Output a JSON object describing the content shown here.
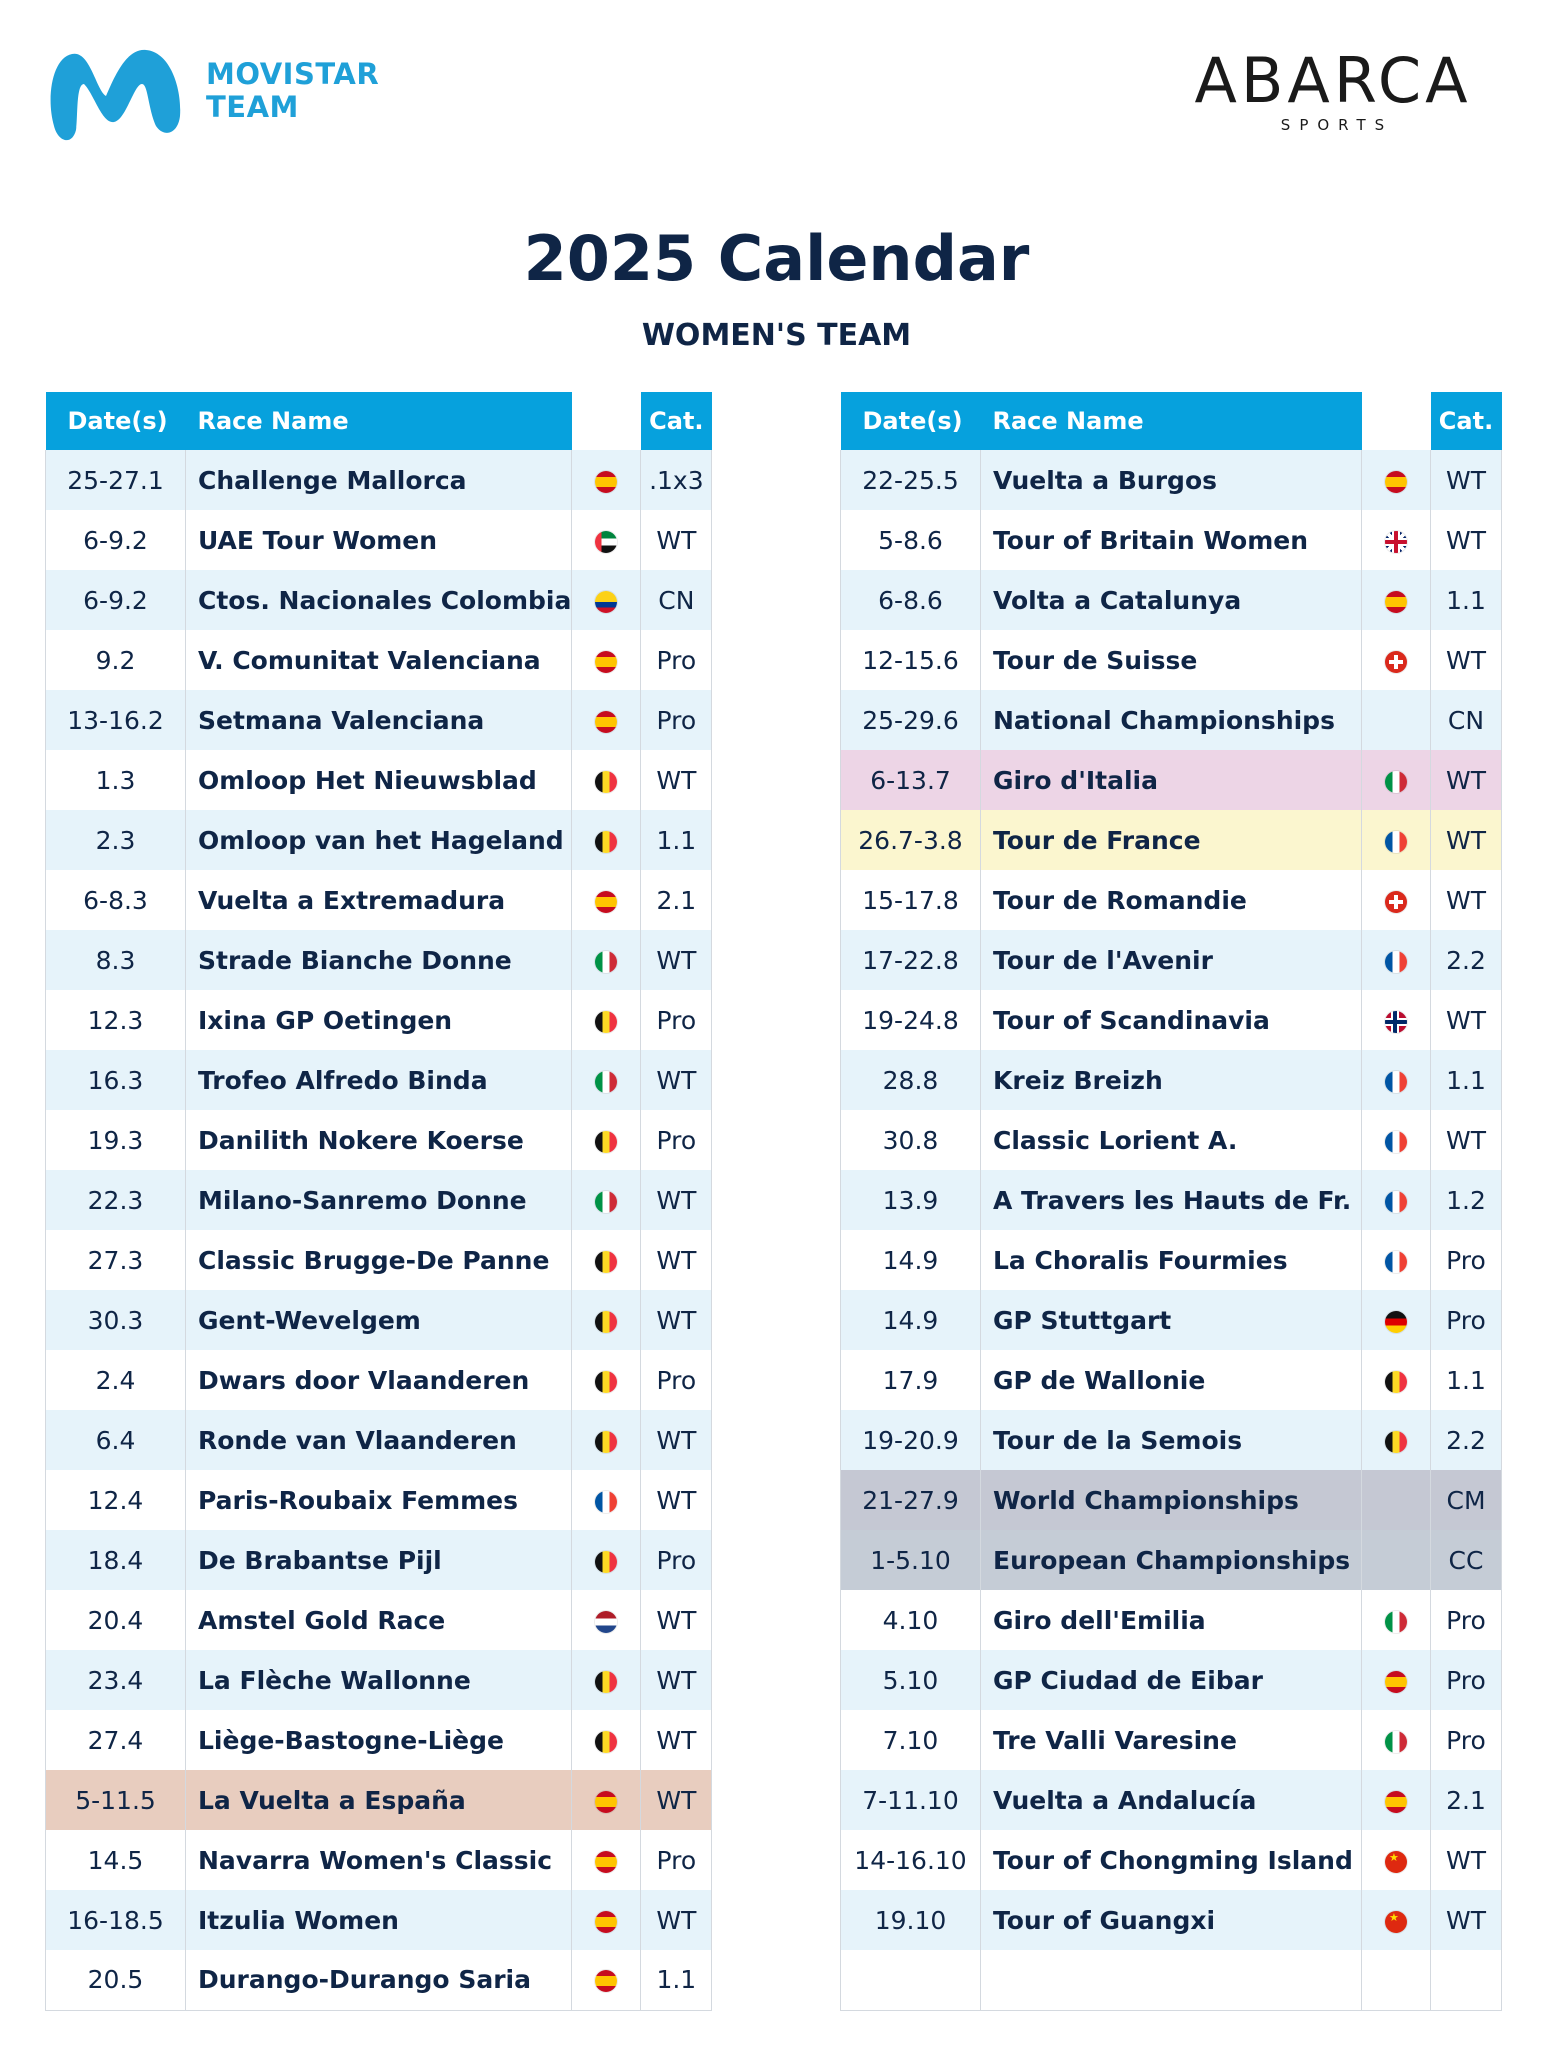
{
  "brand": {
    "line1": "MOVISTAR",
    "line2": "TEAM",
    "color": "#1fa0d8"
  },
  "sponsor": {
    "name": "ABARCA",
    "sub": "SPORTS"
  },
  "title": "2025 Calendar",
  "subtitle": "WOMEN'S TEAM",
  "headers": {
    "dates": "Date(s)",
    "race": "Race Name",
    "cat": "Cat."
  },
  "highlight_colors": {
    "none": "#ffffff",
    "stripe": "#e6f3fa",
    "vuelta": "#e8cdbf",
    "giro": "#edd5e6",
    "tour": "#fbf6cf",
    "worlds": "#c5c8d3",
    "europe": "#c5ccd6"
  },
  "left_races": [
    {
      "date": "25-27.1",
      "race": "Challenge Mallorca",
      "flag": "es",
      "cat": ".1x3",
      "bg": "stripe"
    },
    {
      "date": "6-9.2",
      "race": "UAE Tour Women",
      "flag": "ae",
      "cat": "WT",
      "bg": "none"
    },
    {
      "date": "6-9.2",
      "race": "Ctos. Nacionales Colombia",
      "flag": "co",
      "cat": "CN",
      "bg": "stripe"
    },
    {
      "date": "9.2",
      "race": "V. Comunitat Valenciana",
      "flag": "es",
      "cat": "Pro",
      "bg": "none"
    },
    {
      "date": "13-16.2",
      "race": "Setmana Valenciana",
      "flag": "es",
      "cat": "Pro",
      "bg": "stripe"
    },
    {
      "date": "1.3",
      "race": "Omloop Het Nieuwsblad",
      "flag": "be",
      "cat": "WT",
      "bg": "none"
    },
    {
      "date": "2.3",
      "race": "Omloop van het Hageland",
      "flag": "be",
      "cat": "1.1",
      "bg": "stripe"
    },
    {
      "date": "6-8.3",
      "race": "Vuelta a Extremadura",
      "flag": "es",
      "cat": "2.1",
      "bg": "none"
    },
    {
      "date": "8.3",
      "race": "Strade Bianche Donne",
      "flag": "it",
      "cat": "WT",
      "bg": "stripe"
    },
    {
      "date": "12.3",
      "race": "Ixina GP Oetingen",
      "flag": "be",
      "cat": "Pro",
      "bg": "none"
    },
    {
      "date": "16.3",
      "race": "Trofeo Alfredo Binda",
      "flag": "it",
      "cat": "WT",
      "bg": "stripe"
    },
    {
      "date": "19.3",
      "race": "Danilith Nokere Koerse",
      "flag": "be",
      "cat": "Pro",
      "bg": "none"
    },
    {
      "date": "22.3",
      "race": "Milano-Sanremo Donne",
      "flag": "it",
      "cat": "WT",
      "bg": "stripe"
    },
    {
      "date": "27.3",
      "race": "Classic Brugge-De Panne",
      "flag": "be",
      "cat": "WT",
      "bg": "none"
    },
    {
      "date": "30.3",
      "race": "Gent-Wevelgem",
      "flag": "be",
      "cat": "WT",
      "bg": "stripe"
    },
    {
      "date": "2.4",
      "race": "Dwars door Vlaanderen",
      "flag": "be",
      "cat": "Pro",
      "bg": "none"
    },
    {
      "date": "6.4",
      "race": "Ronde van Vlaanderen",
      "flag": "be",
      "cat": "WT",
      "bg": "stripe"
    },
    {
      "date": "12.4",
      "race": "Paris-Roubaix Femmes",
      "flag": "fr",
      "cat": "WT",
      "bg": "none"
    },
    {
      "date": "18.4",
      "race": "De Brabantse Pijl",
      "flag": "be",
      "cat": "Pro",
      "bg": "stripe"
    },
    {
      "date": "20.4",
      "race": "Amstel Gold Race",
      "flag": "nl",
      "cat": "WT",
      "bg": "none"
    },
    {
      "date": "23.4",
      "race": "La Flèche Wallonne",
      "flag": "be",
      "cat": "WT",
      "bg": "stripe"
    },
    {
      "date": "27.4",
      "race": "Liège-Bastogne-Liège",
      "flag": "be",
      "cat": "WT",
      "bg": "none"
    },
    {
      "date": "5-11.5",
      "race": "La Vuelta a España",
      "flag": "es",
      "cat": "WT",
      "bg": "vuelta"
    },
    {
      "date": "14.5",
      "race": "Navarra Women's Classic",
      "flag": "es",
      "cat": "Pro",
      "bg": "none"
    },
    {
      "date": "16-18.5",
      "race": "Itzulia Women",
      "flag": "es",
      "cat": "WT",
      "bg": "stripe"
    },
    {
      "date": "20.5",
      "race": "Durango-Durango Saria",
      "flag": "es",
      "cat": "1.1",
      "bg": "none"
    }
  ],
  "right_races": [
    {
      "date": "22-25.5",
      "race": "Vuelta a Burgos",
      "flag": "es",
      "cat": "WT",
      "bg": "stripe"
    },
    {
      "date": "5-8.6",
      "race": "Tour of Britain Women",
      "flag": "gb",
      "cat": "WT",
      "bg": "none"
    },
    {
      "date": "6-8.6",
      "race": "Volta a Catalunya",
      "flag": "es",
      "cat": "1.1",
      "bg": "stripe"
    },
    {
      "date": "12-15.6",
      "race": "Tour de Suisse",
      "flag": "ch",
      "cat": "WT",
      "bg": "none"
    },
    {
      "date": "25-29.6",
      "race": "National Championships",
      "flag": "",
      "cat": "CN",
      "bg": "stripe"
    },
    {
      "date": "6-13.7",
      "race": "Giro d'Italia",
      "flag": "it",
      "cat": "WT",
      "bg": "giro"
    },
    {
      "date": "26.7-3.8",
      "race": "Tour de France",
      "flag": "fr",
      "cat": "WT",
      "bg": "tour"
    },
    {
      "date": "15-17.8",
      "race": "Tour de Romandie",
      "flag": "ch",
      "cat": "WT",
      "bg": "none"
    },
    {
      "date": "17-22.8",
      "race": "Tour de l'Avenir",
      "flag": "fr",
      "cat": "2.2",
      "bg": "stripe"
    },
    {
      "date": "19-24.8",
      "race": "Tour of Scandinavia",
      "flag": "no",
      "cat": "WT",
      "bg": "none"
    },
    {
      "date": "28.8",
      "race": "Kreiz Breizh",
      "flag": "fr",
      "cat": "1.1",
      "bg": "stripe"
    },
    {
      "date": "30.8",
      "race": "Classic Lorient A.",
      "flag": "fr",
      "cat": "WT",
      "bg": "none"
    },
    {
      "date": "13.9",
      "race": "A Travers les Hauts de Fr.",
      "flag": "fr",
      "cat": "1.2",
      "bg": "stripe"
    },
    {
      "date": "14.9",
      "race": "La Choralis Fourmies",
      "flag": "fr",
      "cat": "Pro",
      "bg": "none"
    },
    {
      "date": "14.9",
      "race": "GP Stuttgart",
      "flag": "de",
      "cat": "Pro",
      "bg": "stripe"
    },
    {
      "date": "17.9",
      "race": "GP de Wallonie",
      "flag": "be",
      "cat": "1.1",
      "bg": "none"
    },
    {
      "date": "19-20.9",
      "race": "Tour de la Semois",
      "flag": "be",
      "cat": "2.2",
      "bg": "stripe"
    },
    {
      "date": "21-27.9",
      "race": "World Championships",
      "flag": "",
      "cat": "CM",
      "bg": "worlds"
    },
    {
      "date": "1-5.10",
      "race": "European Championships",
      "flag": "",
      "cat": "CC",
      "bg": "europe"
    },
    {
      "date": "4.10",
      "race": "Giro dell'Emilia",
      "flag": "it",
      "cat": "Pro",
      "bg": "none"
    },
    {
      "date": "5.10",
      "race": "GP Ciudad de Eibar",
      "flag": "es",
      "cat": "Pro",
      "bg": "stripe"
    },
    {
      "date": "7.10",
      "race": "Tre Valli Varesine",
      "flag": "it",
      "cat": "Pro",
      "bg": "none"
    },
    {
      "date": "7-11.10",
      "race": "Vuelta a Andalucía",
      "flag": "es",
      "cat": "2.1",
      "bg": "stripe"
    },
    {
      "date": "14-16.10",
      "race": "Tour of Chongming Island",
      "flag": "cn",
      "cat": "WT",
      "bg": "none"
    },
    {
      "date": "19.10",
      "race": "Tour of Guangxi",
      "flag": "cn",
      "cat": "WT",
      "bg": "stripe"
    },
    {
      "date": "",
      "race": "",
      "flag": "",
      "cat": "",
      "bg": "none"
    }
  ]
}
